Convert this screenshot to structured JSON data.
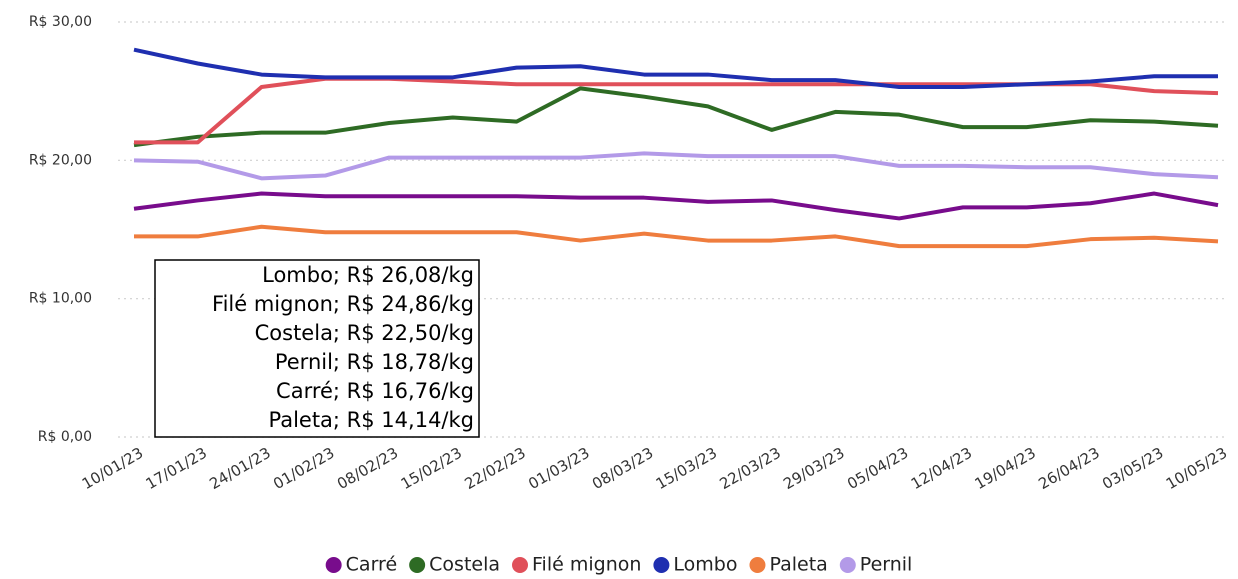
{
  "chart_data": {
    "type": "line",
    "categories": [
      "10/01/23",
      "17/01/23",
      "24/01/23",
      "01/02/23",
      "08/02/23",
      "15/02/23",
      "22/02/23",
      "01/03/23",
      "08/03/23",
      "15/03/23",
      "22/03/23",
      "29/03/23",
      "05/04/23",
      "12/04/23",
      "19/04/23",
      "26/04/23",
      "03/05/23",
      "10/05/23"
    ],
    "series": [
      {
        "name": "Carré",
        "color": "#780c8c",
        "values": [
          16.5,
          17.1,
          17.6,
          17.4,
          17.4,
          17.4,
          17.4,
          17.3,
          17.3,
          17.0,
          17.1,
          16.4,
          15.8,
          16.6,
          16.6,
          16.9,
          17.6,
          16.76
        ]
      },
      {
        "name": "Costela",
        "color": "#2e6b24",
        "values": [
          21.1,
          21.7,
          22.0,
          22.0,
          22.7,
          23.1,
          22.8,
          25.2,
          24.6,
          23.9,
          22.2,
          23.5,
          23.3,
          22.4,
          22.4,
          22.9,
          22.8,
          22.5
        ]
      },
      {
        "name": "Filé mignon",
        "color": "#e0505a",
        "values": [
          21.3,
          21.3,
          25.3,
          25.9,
          25.9,
          25.7,
          25.5,
          25.5,
          25.5,
          25.5,
          25.5,
          25.5,
          25.5,
          25.5,
          25.5,
          25.5,
          25.0,
          24.86
        ]
      },
      {
        "name": "Lombo",
        "color": "#1f2fb0",
        "values": [
          28.0,
          27.0,
          26.2,
          26.0,
          26.0,
          26.0,
          26.7,
          26.8,
          26.2,
          26.2,
          25.8,
          25.8,
          25.3,
          25.3,
          25.5,
          25.7,
          26.08,
          26.08
        ]
      },
      {
        "name": "Paleta",
        "color": "#ef7d3e",
        "values": [
          14.5,
          14.5,
          15.2,
          14.8,
          14.8,
          14.8,
          14.8,
          14.2,
          14.7,
          14.2,
          14.2,
          14.5,
          13.8,
          13.8,
          13.8,
          14.3,
          14.4,
          14.14
        ]
      },
      {
        "name": "Pernil",
        "color": "#b39ae8",
        "values": [
          20.0,
          19.9,
          18.7,
          18.9,
          20.2,
          20.2,
          20.2,
          20.2,
          20.5,
          20.3,
          20.3,
          20.3,
          19.6,
          19.6,
          19.5,
          19.5,
          19.0,
          18.78
        ]
      }
    ],
    "ylim": [
      0,
      30
    ],
    "yticks": [
      {
        "value": 0,
        "label": "R$ 0,00"
      },
      {
        "value": 10,
        "label": "R$ 10,00"
      },
      {
        "value": 20,
        "label": "R$ 20,00"
      },
      {
        "value": 30,
        "label": "R$ 30,00"
      }
    ],
    "grid": true,
    "legend": "bottom",
    "annotations": [
      "Lombo; R$ 26,08/kg",
      "Filé mignon; R$ 24,86/kg",
      "Costela; R$ 22,50/kg",
      "Pernil; R$ 18,78/kg",
      "Carré; R$ 16,76/kg",
      "Paleta; R$ 14,14/kg"
    ]
  }
}
